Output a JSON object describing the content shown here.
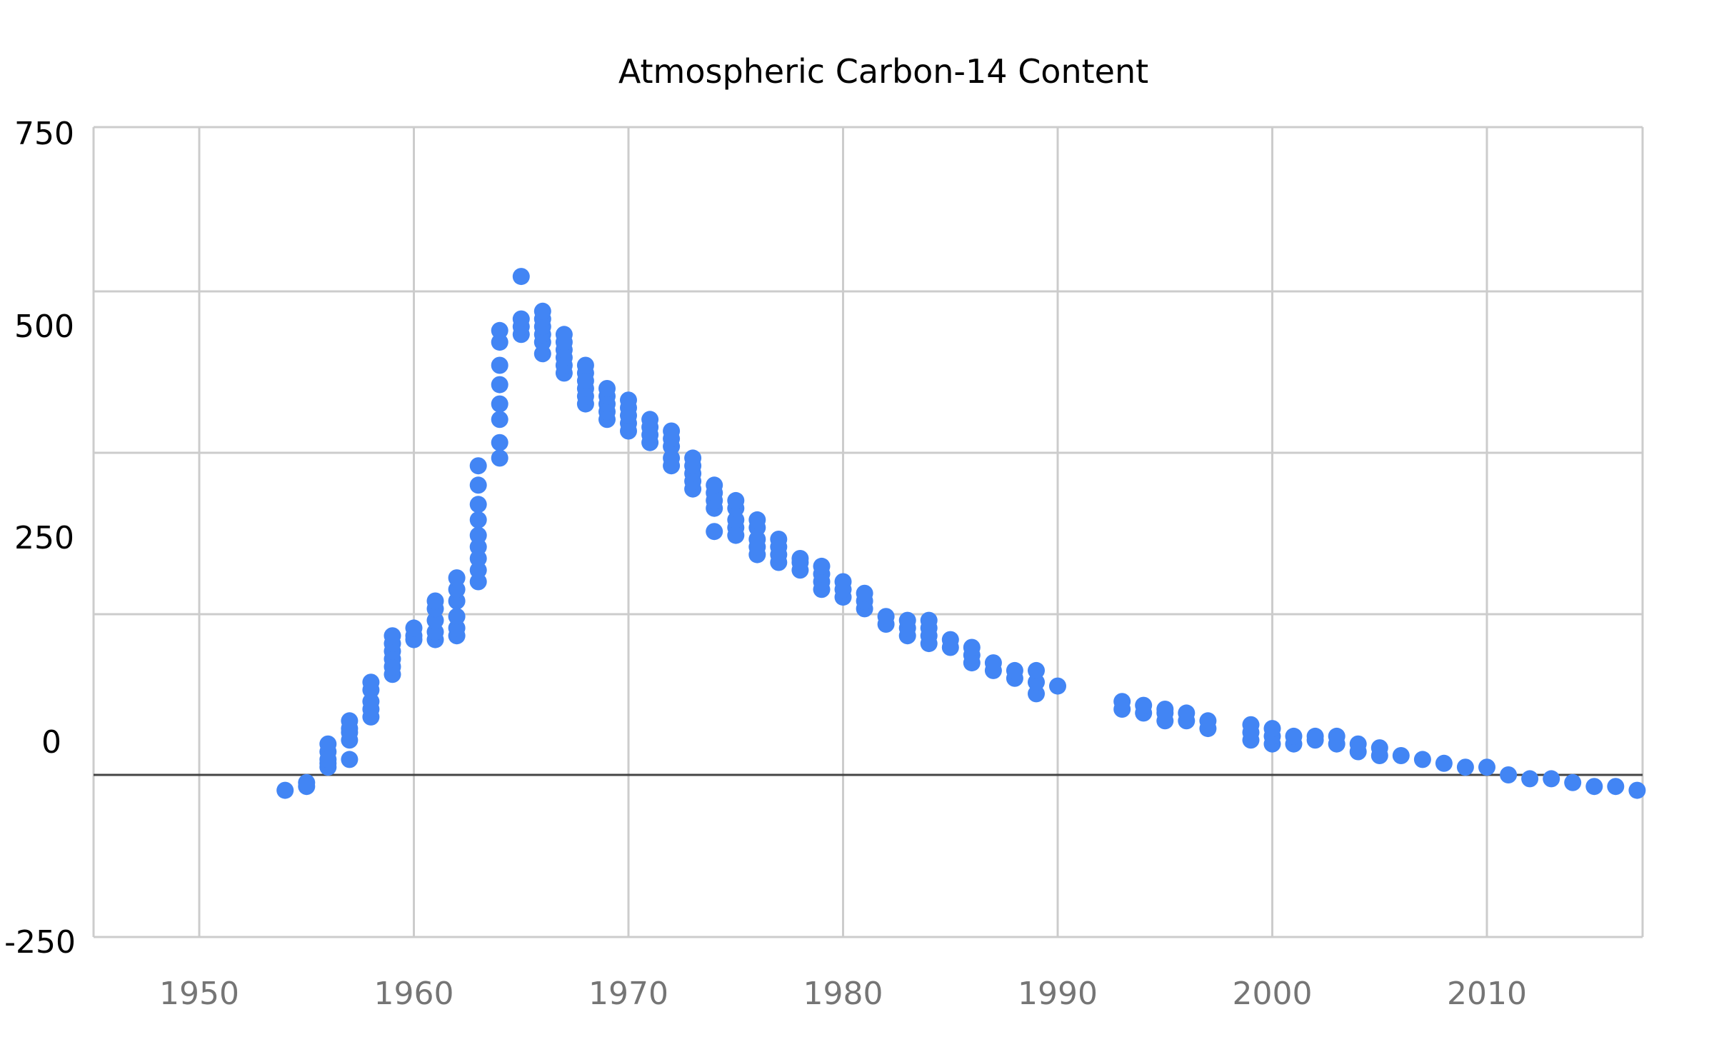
{
  "chart_data": {
    "type": "scatter",
    "title": "Atmospheric Carbon-14 Content",
    "xlabel": "",
    "ylabel": "",
    "xlim": [
      1945,
      2017
    ],
    "ylim": [
      -250,
      750
    ],
    "x_ticks": [
      1950,
      1960,
      1970,
      1980,
      1990,
      2000,
      2010
    ],
    "y_tick_labels": [
      "750",
      "500",
      "250",
      "0",
      "-250"
    ],
    "grid": true,
    "legend": "none",
    "point_color": "#4285f4",
    "baseline_color": "#444444",
    "grid_color": "#cccccc",
    "series": [
      {
        "points": [
          [
            1954,
            -20
          ],
          [
            1955,
            -10
          ],
          [
            1955,
            -15
          ],
          [
            1956,
            10
          ],
          [
            1956,
            15
          ],
          [
            1956,
            20
          ],
          [
            1956,
            30
          ],
          [
            1956,
            40
          ],
          [
            1957,
            20
          ],
          [
            1957,
            45
          ],
          [
            1957,
            55
          ],
          [
            1957,
            60
          ],
          [
            1957,
            70
          ],
          [
            1958,
            75
          ],
          [
            1958,
            85
          ],
          [
            1958,
            95
          ],
          [
            1958,
            110
          ],
          [
            1958,
            120
          ],
          [
            1959,
            130
          ],
          [
            1959,
            140
          ],
          [
            1959,
            150
          ],
          [
            1959,
            160
          ],
          [
            1959,
            170
          ],
          [
            1959,
            180
          ],
          [
            1960,
            175
          ],
          [
            1960,
            180
          ],
          [
            1960,
            190
          ],
          [
            1961,
            175
          ],
          [
            1961,
            185
          ],
          [
            1961,
            200
          ],
          [
            1961,
            215
          ],
          [
            1961,
            225
          ],
          [
            1962,
            180
          ],
          [
            1962,
            190
          ],
          [
            1962,
            205
          ],
          [
            1962,
            225
          ],
          [
            1962,
            240
          ],
          [
            1962,
            255
          ],
          [
            1963,
            250
          ],
          [
            1963,
            265
          ],
          [
            1963,
            280
          ],
          [
            1963,
            295
          ],
          [
            1963,
            310
          ],
          [
            1963,
            330
          ],
          [
            1963,
            350
          ],
          [
            1963,
            375
          ],
          [
            1963,
            400
          ],
          [
            1964,
            410
          ],
          [
            1964,
            430
          ],
          [
            1964,
            460
          ],
          [
            1964,
            480
          ],
          [
            1964,
            505
          ],
          [
            1964,
            530
          ],
          [
            1964,
            560
          ],
          [
            1964,
            575
          ],
          [
            1965,
            570
          ],
          [
            1965,
            580
          ],
          [
            1965,
            590
          ],
          [
            1965,
            645
          ],
          [
            1966,
            545
          ],
          [
            1966,
            560
          ],
          [
            1966,
            570
          ],
          [
            1966,
            580
          ],
          [
            1966,
            590
          ],
          [
            1966,
            600
          ],
          [
            1967,
            520
          ],
          [
            1967,
            530
          ],
          [
            1967,
            540
          ],
          [
            1967,
            550
          ],
          [
            1967,
            560
          ],
          [
            1967,
            570
          ],
          [
            1968,
            480
          ],
          [
            1968,
            490
          ],
          [
            1968,
            500
          ],
          [
            1968,
            510
          ],
          [
            1968,
            520
          ],
          [
            1968,
            530
          ],
          [
            1969,
            460
          ],
          [
            1969,
            470
          ],
          [
            1969,
            480
          ],
          [
            1969,
            490
          ],
          [
            1969,
            500
          ],
          [
            1970,
            445
          ],
          [
            1970,
            455
          ],
          [
            1970,
            465
          ],
          [
            1970,
            475
          ],
          [
            1970,
            485
          ],
          [
            1971,
            430
          ],
          [
            1971,
            440
          ],
          [
            1971,
            450
          ],
          [
            1971,
            460
          ],
          [
            1972,
            400
          ],
          [
            1972,
            410
          ],
          [
            1972,
            425
          ],
          [
            1972,
            435
          ],
          [
            1972,
            445
          ],
          [
            1973,
            370
          ],
          [
            1973,
            380
          ],
          [
            1973,
            390
          ],
          [
            1973,
            400
          ],
          [
            1973,
            410
          ],
          [
            1974,
            315
          ],
          [
            1974,
            345
          ],
          [
            1974,
            355
          ],
          [
            1974,
            365
          ],
          [
            1974,
            375
          ],
          [
            1975,
            310
          ],
          [
            1975,
            320
          ],
          [
            1975,
            330
          ],
          [
            1975,
            345
          ],
          [
            1975,
            355
          ],
          [
            1976,
            285
          ],
          [
            1976,
            295
          ],
          [
            1976,
            305
          ],
          [
            1976,
            320
          ],
          [
            1976,
            330
          ],
          [
            1977,
            275
          ],
          [
            1977,
            285
          ],
          [
            1977,
            295
          ],
          [
            1977,
            305
          ],
          [
            1978,
            265
          ],
          [
            1978,
            275
          ],
          [
            1978,
            280
          ],
          [
            1979,
            240
          ],
          [
            1979,
            250
          ],
          [
            1979,
            260
          ],
          [
            1979,
            270
          ],
          [
            1980,
            230
          ],
          [
            1980,
            240
          ],
          [
            1980,
            250
          ],
          [
            1981,
            215
          ],
          [
            1981,
            225
          ],
          [
            1981,
            235
          ],
          [
            1982,
            195
          ],
          [
            1982,
            205
          ],
          [
            1983,
            180
          ],
          [
            1983,
            190
          ],
          [
            1983,
            200
          ],
          [
            1984,
            170
          ],
          [
            1984,
            180
          ],
          [
            1984,
            190
          ],
          [
            1984,
            200
          ],
          [
            1985,
            165
          ],
          [
            1985,
            175
          ],
          [
            1986,
            145
          ],
          [
            1986,
            155
          ],
          [
            1986,
            165
          ],
          [
            1987,
            135
          ],
          [
            1987,
            145
          ],
          [
            1988,
            125
          ],
          [
            1988,
            135
          ],
          [
            1989,
            105
          ],
          [
            1989,
            120
          ],
          [
            1989,
            135
          ],
          [
            1990,
            115
          ],
          [
            1993,
            85
          ],
          [
            1993,
            95
          ],
          [
            1994,
            80
          ],
          [
            1994,
            90
          ],
          [
            1995,
            70
          ],
          [
            1995,
            80
          ],
          [
            1995,
            85
          ],
          [
            1996,
            70
          ],
          [
            1996,
            80
          ],
          [
            1997,
            60
          ],
          [
            1997,
            70
          ],
          [
            1999,
            45
          ],
          [
            1999,
            55
          ],
          [
            1999,
            65
          ],
          [
            2000,
            40
          ],
          [
            2000,
            50
          ],
          [
            2000,
            60
          ],
          [
            2001,
            40
          ],
          [
            2001,
            50
          ],
          [
            2002,
            45
          ],
          [
            2002,
            50
          ],
          [
            2003,
            40
          ],
          [
            2003,
            50
          ],
          [
            2004,
            30
          ],
          [
            2004,
            40
          ],
          [
            2005,
            25
          ],
          [
            2005,
            35
          ],
          [
            2006,
            25
          ],
          [
            2007,
            20
          ],
          [
            2008,
            15
          ],
          [
            2009,
            10
          ],
          [
            2010,
            10
          ],
          [
            2011,
            0
          ],
          [
            2012,
            -5
          ],
          [
            2013,
            -5
          ],
          [
            2014,
            -10
          ],
          [
            2015,
            -15
          ],
          [
            2016,
            -15
          ],
          [
            2017,
            -20
          ]
        ]
      }
    ]
  }
}
